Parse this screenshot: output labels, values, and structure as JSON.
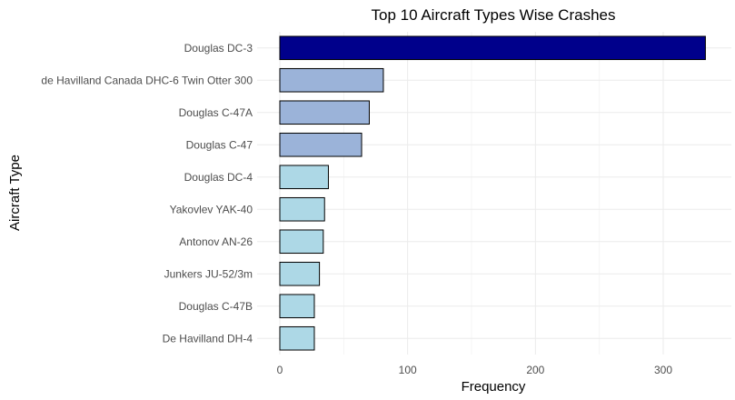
{
  "chart_data": {
    "type": "bar",
    "orientation": "horizontal",
    "title": "Top 10 Aircraft Types Wise Crashes",
    "xlabel": "Frequency",
    "ylabel": "Aircraft Type",
    "xlim": [
      0,
      335
    ],
    "xticks": [
      0,
      100,
      200,
      300
    ],
    "grid": true,
    "legend": "none",
    "categories": [
      "Douglas DC-3",
      "de Havilland Canada DHC-6 Twin Otter 300",
      "Douglas C-47A",
      "Douglas C-47",
      "Douglas DC-4",
      "Yakovlev YAK-40",
      "Antonov AN-26",
      "Junkers JU-52/3m",
      "Douglas C-47B",
      "De Havilland DH-4"
    ],
    "values": [
      333,
      81,
      70,
      64,
      38,
      35,
      34,
      31,
      27,
      27
    ],
    "colors": [
      "#00008b",
      "#9bb3d9",
      "#9bb3d9",
      "#9bb3d9",
      "#add8e6",
      "#add8e6",
      "#add8e6",
      "#add8e6",
      "#add8e6",
      "#add8e6"
    ]
  }
}
